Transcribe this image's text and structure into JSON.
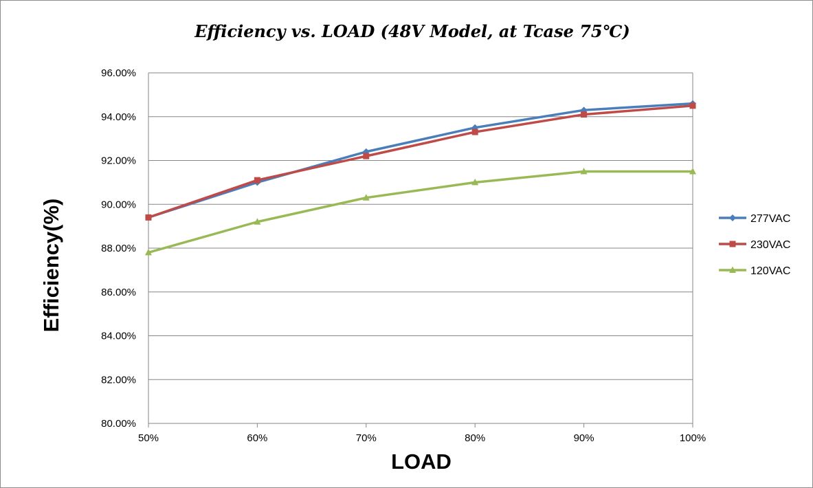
{
  "chart_data": {
    "type": "line",
    "title": "Efficiency vs. LOAD (48V Model, at Tcase 75℃)",
    "xlabel": "LOAD",
    "ylabel": "Efficiency(%)",
    "categories": [
      "50%",
      "60%",
      "70%",
      "80%",
      "90%",
      "100%"
    ],
    "ylim": [
      80,
      96
    ],
    "yticks": [
      "80.00%",
      "82.00%",
      "84.00%",
      "86.00%",
      "88.00%",
      "90.00%",
      "92.00%",
      "94.00%",
      "96.00%"
    ],
    "grid": true,
    "legend_position": "right",
    "series": [
      {
        "name": "277VAC",
        "color": "#4a7ebb",
        "marker": "diamond",
        "values": [
          89.4,
          91.0,
          92.4,
          93.5,
          94.3,
          94.6
        ]
      },
      {
        "name": "230VAC",
        "color": "#be4b48",
        "marker": "square",
        "values": [
          89.4,
          91.1,
          92.2,
          93.3,
          94.1,
          94.5
        ]
      },
      {
        "name": "120VAC",
        "color": "#98b954",
        "marker": "triangle",
        "values": [
          87.8,
          89.2,
          90.3,
          91.0,
          91.5,
          91.5
        ]
      }
    ]
  }
}
